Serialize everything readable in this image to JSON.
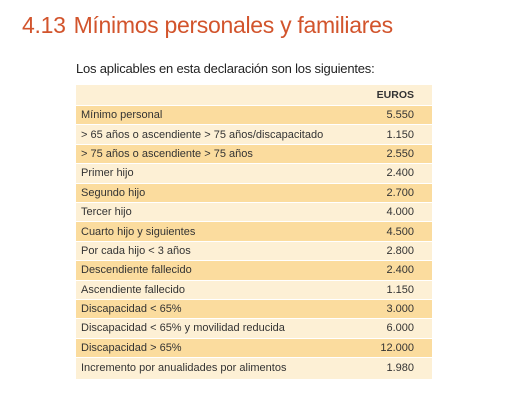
{
  "section": {
    "number": "4.13",
    "title": "Mínimos personales y familiares"
  },
  "intro": "Los aplicables en esta declaración son los siguientes:",
  "table": {
    "column_header": "EUROS",
    "rows": [
      {
        "concept": "Mínimo personal",
        "amount": "5.550"
      },
      {
        "concept": "> 65 años o ascendiente > 75 años/discapacitado",
        "amount": "1.150"
      },
      {
        "concept": "> 75 años o ascendiente > 75 años",
        "amount": "2.550"
      },
      {
        "concept": "Primer hijo",
        "amount": "2.400"
      },
      {
        "concept": "Segundo hijo",
        "amount": "2.700"
      },
      {
        "concept": "Tercer hijo",
        "amount": "4.000"
      },
      {
        "concept": "Cuarto hijo y siguientes",
        "amount": "4.500"
      },
      {
        "concept": "Por cada hijo < 3 años",
        "amount": "2.800"
      },
      {
        "concept": "Descendiente fallecido",
        "amount": "2.400"
      },
      {
        "concept": "Ascendiente fallecido",
        "amount": "1.150"
      },
      {
        "concept": "Discapacidad < 65%",
        "amount": "3.000"
      },
      {
        "concept": "Discapacidad  < 65% y movilidad reducida",
        "amount": "6.000"
      },
      {
        "concept": "Discapacidad  > 65%",
        "amount": "12.000"
      },
      {
        "concept": "Incremento por anualidades por alimentos",
        "amount": "1.980"
      }
    ]
  },
  "colors": {
    "title": "#d2542c",
    "row_band_dark": "#fbdc9e",
    "row_band_light": "#fdf0d5"
  }
}
